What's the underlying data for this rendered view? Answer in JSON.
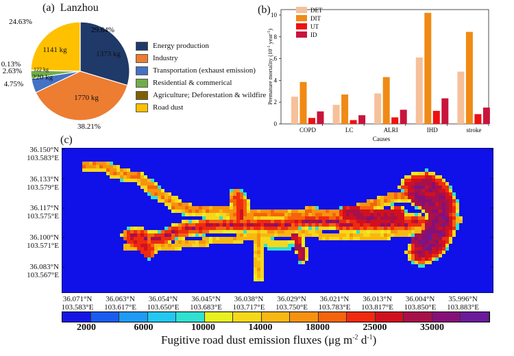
{
  "panel_a": {
    "label": "(a)",
    "title": "Lanzhou",
    "legend": [
      {
        "label": "Energy production",
        "color": "#1f3a68"
      },
      {
        "label": "Industry",
        "color": "#ed7d31"
      },
      {
        "label": "Transportation (exhaust emission)",
        "color": "#4472c4"
      },
      {
        "label": "Residential & commerical",
        "color": "#70ad47"
      },
      {
        "label": "Agriculture; Deforestation & wildfire",
        "color": "#7f6000"
      },
      {
        "label": "Road dust",
        "color": "#ffc000"
      }
    ]
  },
  "panel_b": {
    "label": "(b)"
  },
  "panel_c": {
    "label": "(c)",
    "y_coords": [
      {
        "lat": "36.150°N",
        "lon": "103.583°E"
      },
      {
        "lat": "36.133°N",
        "lon": "103.579°E"
      },
      {
        "lat": "36.117°N",
        "lon": "103.575°E"
      },
      {
        "lat": "36.100°N",
        "lon": "103.571°E"
      },
      {
        "lat": "36.083°N",
        "lon": "103.567°E"
      }
    ],
    "x_coords": [
      {
        "lat": "36.071°N",
        "lon": "103.583°E"
      },
      {
        "lat": "36.063°N",
        "lon": "103.617°E"
      },
      {
        "lat": "36.054°N",
        "lon": "103.650°E"
      },
      {
        "lat": "36.045°N",
        "lon": "103.683°E"
      },
      {
        "lat": "36.038°N",
        "lon": "103.717°E"
      },
      {
        "lat": "36.029°N",
        "lon": "103.750°E"
      },
      {
        "lat": "36.021°N",
        "lon": "103.783°E"
      },
      {
        "lat": "36.013°N",
        "lon": "103.817°E"
      },
      {
        "lat": "36.004°N",
        "lon": "103.850°E"
      },
      {
        "lat": "35.996°N",
        "lon": "103.883°E"
      }
    ],
    "colorbar": {
      "colors": [
        "#1515e6",
        "#1a5cf0",
        "#1f9bf5",
        "#22c8f0",
        "#30e0d0",
        "#e8f020",
        "#f5d81a",
        "#f7b812",
        "#f7920e",
        "#f5640c",
        "#ef2a10",
        "#d01020",
        "#a8104a",
        "#861078",
        "#6a1a9a"
      ],
      "labels": [
        "2000",
        "6000",
        "10000",
        "14000",
        "18000",
        "25000",
        "35000"
      ],
      "title_main": "Fugitive road dust emission fluxes (μg m",
      "title_sup1": "-2",
      "title_mid": " d",
      "title_sup2": "-1",
      "title_end": ")"
    }
  },
  "chart_data": [
    {
      "type": "pie",
      "title": "Lanzhou",
      "labels": [
        "Energy production",
        "Industry",
        "Transportation (exhaust emission)",
        "Residential & commerical",
        "Agriculture; Deforestation & wildfire",
        "Road dust"
      ],
      "values_kg": [
        1373,
        1770,
        220,
        122,
        6,
        1141
      ],
      "percent": [
        29.64,
        38.21,
        4.75,
        2.63,
        0.13,
        24.63
      ],
      "value_labels": [
        "1373 kg",
        "1770 kg",
        "220 kg",
        "122 kg",
        "",
        "1141 kg"
      ],
      "percent_labels": [
        "29.64%",
        "38.21%",
        "4.75%",
        "2.63%",
        "0.13%",
        "24.63%"
      ]
    },
    {
      "type": "bar",
      "categories": [
        "COPD",
        "LC",
        "ALRI",
        "IHD",
        "stroke"
      ],
      "series": [
        {
          "name": "DET",
          "color": "#f6c09a",
          "values": [
            2.5,
            1.75,
            2.8,
            6.1,
            4.8
          ]
        },
        {
          "name": "DIT",
          "color": "#f08a15",
          "values": [
            3.85,
            2.7,
            4.3,
            10.2,
            8.45
          ]
        },
        {
          "name": "UT",
          "color": "#ee1111",
          "values": [
            0.55,
            0.35,
            0.6,
            1.2,
            0.9
          ]
        },
        {
          "name": "ID",
          "color": "#c8143c",
          "values": [
            1.15,
            0.8,
            1.3,
            2.35,
            1.5
          ]
        }
      ],
      "xlabel": "Causes",
      "ylabel_main": "Premature mortality (10",
      "ylabel_sup": "-1",
      "ylabel_mid": " year",
      "ylabel_sup2": "-1",
      "ylabel_end": ")",
      "ylim": [
        0,
        10.5
      ],
      "yticks": [
        "0",
        "2",
        "4",
        "6",
        "8",
        "10"
      ]
    }
  ]
}
